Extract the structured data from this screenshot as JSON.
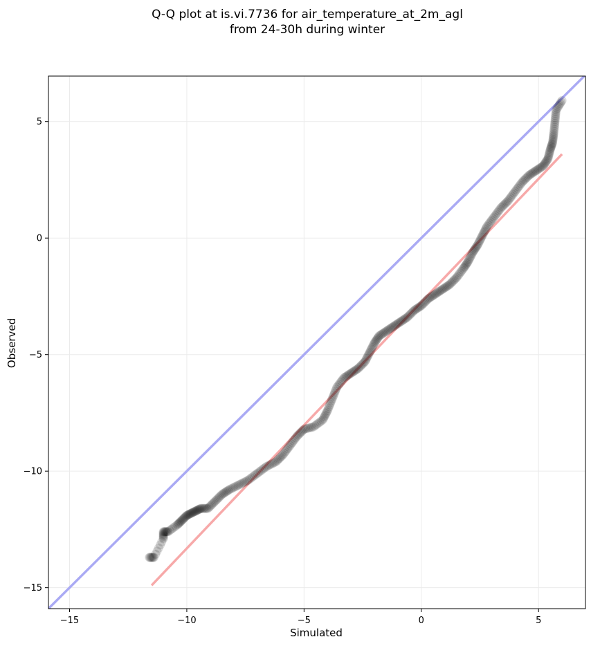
{
  "chart_data": {
    "type": "scatter",
    "title": [
      "Q-Q plot at is.vi.7736 for air_temperature_at_2m_agl",
      "from 24-30h during winter"
    ],
    "xlabel": "Simulated",
    "ylabel": "Observed",
    "xlim": [
      -15.9,
      7.0
    ],
    "ylim": [
      -15.9,
      6.95
    ],
    "x_ticks": [
      -15,
      -10,
      -5,
      0,
      5
    ],
    "y_ticks": [
      -15,
      -10,
      -5,
      0,
      5
    ],
    "x_tick_labels": [
      "−15",
      "−10",
      "−5",
      "0",
      "5"
    ],
    "y_tick_labels": [
      "−15",
      "−10",
      "−5",
      "0",
      "5"
    ],
    "grid": true,
    "colors": {
      "points": "#000000",
      "identity_line": "#aaaaf4",
      "fit_line": "#f7a9a9",
      "grid": "#ebebeb"
    },
    "quantile_points": [
      [
        -11.6,
        -13.7
      ],
      [
        -11.4,
        -13.7
      ],
      [
        -11.0,
        -12.9
      ],
      [
        -11.0,
        -12.6
      ],
      [
        -10.8,
        -12.6
      ],
      [
        -10.4,
        -12.3
      ],
      [
        -10.2,
        -12.1
      ],
      [
        -10.0,
        -11.9
      ],
      [
        -9.8,
        -11.8
      ],
      [
        -9.6,
        -11.7
      ],
      [
        -9.4,
        -11.6
      ],
      [
        -9.1,
        -11.6
      ],
      [
        -8.8,
        -11.3
      ],
      [
        -8.5,
        -11.0
      ],
      [
        -8.2,
        -10.8
      ],
      [
        -7.8,
        -10.6
      ],
      [
        -7.4,
        -10.4
      ],
      [
        -7.0,
        -10.1
      ],
      [
        -6.6,
        -9.8
      ],
      [
        -6.2,
        -9.6
      ],
      [
        -5.9,
        -9.3
      ],
      [
        -5.6,
        -8.9
      ],
      [
        -5.3,
        -8.5
      ],
      [
        -5.0,
        -8.2
      ],
      [
        -4.6,
        -8.1
      ],
      [
        -4.2,
        -7.8
      ],
      [
        -4.0,
        -7.4
      ],
      [
        -3.8,
        -6.9
      ],
      [
        -3.6,
        -6.4
      ],
      [
        -3.3,
        -6.0
      ],
      [
        -3.0,
        -5.8
      ],
      [
        -2.7,
        -5.6
      ],
      [
        -2.4,
        -5.3
      ],
      [
        -2.2,
        -4.9
      ],
      [
        -2.0,
        -4.5
      ],
      [
        -1.8,
        -4.2
      ],
      [
        -1.5,
        -4.0
      ],
      [
        -1.2,
        -3.8
      ],
      [
        -0.9,
        -3.6
      ],
      [
        -0.6,
        -3.4
      ],
      [
        -0.3,
        -3.1
      ],
      [
        0.0,
        -2.9
      ],
      [
        0.3,
        -2.6
      ],
      [
        0.6,
        -2.4
      ],
      [
        0.9,
        -2.2
      ],
      [
        1.2,
        -2.0
      ],
      [
        1.5,
        -1.7
      ],
      [
        1.8,
        -1.3
      ],
      [
        2.0,
        -1.0
      ],
      [
        2.2,
        -0.6
      ],
      [
        2.4,
        -0.3
      ],
      [
        2.6,
        0.1
      ],
      [
        2.8,
        0.5
      ],
      [
        3.1,
        0.9
      ],
      [
        3.4,
        1.3
      ],
      [
        3.7,
        1.6
      ],
      [
        4.0,
        2.0
      ],
      [
        4.3,
        2.4
      ],
      [
        4.6,
        2.7
      ],
      [
        4.9,
        2.9
      ],
      [
        5.2,
        3.1
      ],
      [
        5.4,
        3.4
      ],
      [
        5.5,
        3.8
      ],
      [
        5.6,
        4.1
      ],
      [
        5.65,
        4.5
      ],
      [
        5.7,
        5.0
      ],
      [
        5.75,
        5.5
      ],
      [
        6.0,
        5.9
      ]
    ],
    "identity_line": [
      [
        -15.9,
        -15.9
      ],
      [
        7.0,
        7.0
      ]
    ],
    "fit_line": [
      [
        -11.5,
        -14.9
      ],
      [
        6.0,
        3.6
      ]
    ]
  }
}
